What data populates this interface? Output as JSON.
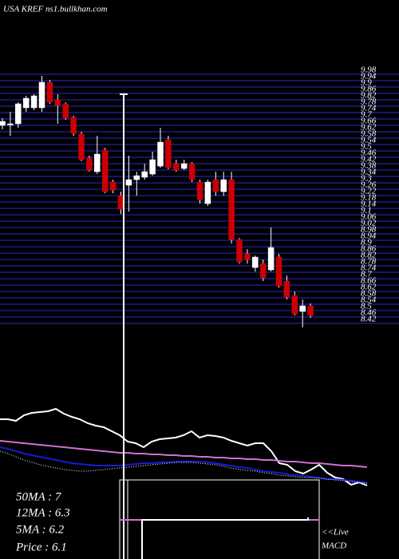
{
  "chart_data": [
    {
      "type": "candlestick",
      "title": "USA KREF ns1.bullkhan.com",
      "ylim": [
        8.38,
        9.98
      ],
      "yticks": [
        9.98,
        9.94,
        9.9,
        9.86,
        9.82,
        9.78,
        9.74,
        9.7,
        9.66,
        9.62,
        9.58,
        9.54,
        9.5,
        9.46,
        9.42,
        9.38,
        9.34,
        9.3,
        9.26,
        9.22,
        9.18,
        9.14,
        9.1,
        9.06,
        9.02,
        8.98,
        8.94,
        8.9,
        8.86,
        8.82,
        8.78,
        8.74,
        8.7,
        8.66,
        8.62,
        8.58,
        8.54,
        8.5,
        8.46,
        8.42
      ],
      "grid": true,
      "grid_color": "#1c1c8c",
      "up_color": "#ffffff",
      "down_color": "#cc0000",
      "open": [
        9.66,
        9.67,
        9.67,
        9.77,
        9.77,
        9.77,
        9.93,
        9.82,
        9.795,
        9.71,
        9.605,
        9.455,
        9.37,
        9.505,
        9.305,
        9.22,
        9.285,
        9.32,
        9.335,
        9.355,
        9.405,
        9.57,
        9.42,
        9.39,
        9.42,
        9.305,
        9.17,
        9.32,
        9.245,
        9.32,
        8.945,
        8.855,
        8.77,
        8.795,
        8.755,
        8.835,
        8.685,
        8.595,
        8.495,
        8.53
      ],
      "high": [
        9.705,
        9.745,
        9.805,
        9.845,
        9.855,
        9.97,
        9.945,
        9.855,
        9.805,
        9.72,
        9.62,
        9.47,
        9.595,
        9.52,
        9.32,
        9.245,
        9.47,
        9.37,
        9.42,
        9.495,
        9.645,
        9.595,
        9.445,
        9.445,
        9.43,
        9.32,
        9.32,
        9.37,
        9.37,
        9.37,
        8.955,
        8.885,
        8.845,
        8.82,
        9.02,
        8.855,
        8.72,
        8.62,
        8.57,
        8.545
      ],
      "low": [
        9.635,
        9.595,
        9.645,
        9.745,
        9.755,
        9.745,
        9.795,
        9.67,
        9.695,
        9.595,
        9.435,
        9.37,
        9.355,
        9.235,
        9.235,
        9.105,
        9.12,
        9.22,
        9.32,
        9.345,
        9.395,
        9.385,
        9.37,
        9.38,
        9.305,
        9.17,
        9.155,
        9.22,
        9.22,
        8.92,
        8.795,
        8.795,
        8.745,
        8.685,
        8.745,
        8.645,
        8.57,
        8.47,
        8.395,
        8.455
      ],
      "close": [
        9.685,
        9.67,
        9.795,
        9.83,
        9.845,
        9.93,
        9.805,
        9.785,
        9.705,
        9.61,
        9.445,
        9.38,
        9.48,
        9.245,
        9.255,
        9.135,
        9.32,
        9.345,
        9.37,
        9.445,
        9.555,
        9.395,
        9.38,
        9.42,
        9.32,
        9.195,
        9.305,
        9.245,
        9.32,
        8.945,
        8.805,
        8.82,
        8.835,
        8.705,
        8.895,
        8.655,
        8.585,
        8.48,
        8.53,
        8.47
      ]
    },
    {
      "type": "line",
      "ylim": [
        0,
        140
      ],
      "legend": [
        "50MA : 7",
        "12MA : 6.3",
        "5MA : 6.2",
        "Price  : 6.1"
      ],
      "notes": [
        "<<Live",
        "MACD"
      ],
      "series": [
        {
          "color": "#ffffff",
          "style": "solid",
          "values": [
            95,
            95,
            93,
            100,
            103,
            104,
            105,
            108,
            102,
            98,
            95,
            90,
            87,
            85,
            80,
            75,
            67,
            65,
            60,
            67,
            70,
            71,
            72,
            75,
            80,
            72,
            75,
            74,
            72,
            68,
            65,
            62,
            65,
            65,
            55,
            40,
            38,
            30,
            27,
            32,
            38,
            28,
            22,
            20,
            13,
            16,
            12
          ]
        },
        {
          "color": "#d070d0",
          "style": "solid",
          "values": [
            68,
            67,
            66,
            65,
            64,
            63,
            62,
            61,
            60,
            59,
            58,
            57,
            56,
            55,
            54,
            53,
            53,
            52,
            52,
            51,
            51,
            50,
            50,
            49,
            49,
            48,
            48,
            47,
            47,
            46,
            46,
            45,
            45,
            44,
            44,
            43,
            42,
            42,
            41,
            40,
            40,
            39,
            38,
            37,
            37,
            36,
            35
          ]
        },
        {
          "color": "#1a1ad0",
          "style": "solid",
          "values": [
            60,
            58,
            55,
            52,
            50,
            48,
            46,
            44,
            42,
            40,
            39,
            38,
            37,
            37,
            37,
            37,
            38,
            39,
            40,
            40,
            41,
            41,
            42,
            42,
            42,
            42,
            41,
            40,
            38,
            37,
            35,
            34,
            32,
            30,
            29,
            28,
            26,
            25,
            24,
            23,
            22,
            20,
            20,
            19,
            18,
            17,
            15
          ]
        },
        {
          "color": "#ffffff",
          "style": "dotted",
          "values": [
            55,
            52,
            48,
            44,
            41,
            38,
            36,
            34,
            32,
            31,
            30,
            30,
            31,
            32,
            33,
            34,
            35,
            36,
            37,
            38,
            39,
            40,
            41,
            41,
            41,
            40,
            39,
            38,
            36,
            34,
            32,
            31,
            30,
            28,
            27,
            25,
            24,
            23,
            22,
            22,
            21,
            20,
            19,
            18,
            17,
            16,
            15
          ]
        }
      ]
    }
  ]
}
